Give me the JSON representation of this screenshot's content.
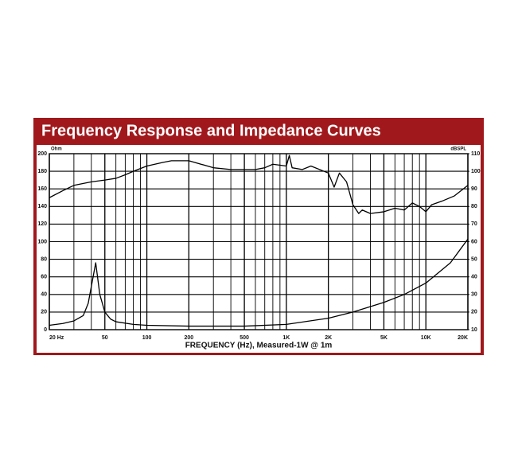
{
  "chart_data": {
    "type": "line",
    "title": "Frequency Response and Impedance Curves",
    "x_label": "FREQUENCY (Hz), Measured-1W @ 1m",
    "y_label": "Ohm",
    "y2_label": "dBSPL",
    "xscale": "log",
    "xlim": [
      20,
      20000
    ],
    "xticks": [
      {
        "value": 20,
        "label": "20 Hz"
      },
      50,
      100,
      200,
      500,
      {
        "value": 1000,
        "label": "1K"
      },
      {
        "value": 2000,
        "label": "2K"
      },
      {
        "value": 5000,
        "label": "5K"
      },
      {
        "value": 10000,
        "label": "10K"
      },
      {
        "value": 20000,
        "label": "20K"
      }
    ],
    "xgrid": [
      30,
      40,
      60,
      70,
      80,
      90,
      300,
      400,
      600,
      700,
      800,
      900,
      3000,
      4000,
      6000,
      7000,
      8000,
      9000
    ],
    "ylim": [
      0,
      200
    ],
    "yticks": [
      0,
      20,
      40,
      60,
      80,
      100,
      120,
      140,
      160,
      180,
      200
    ],
    "y2lim": [
      10,
      110
    ],
    "y2ticks": [
      10,
      20,
      30,
      40,
      50,
      60,
      70,
      80,
      90,
      100,
      110
    ],
    "grid": true,
    "header_color": "#a0181c",
    "series": [
      {
        "color": "#000000",
        "axis": "y2",
        "x": [
          20,
          25,
          30,
          40,
          50,
          60,
          70,
          80,
          100,
          130,
          150,
          200,
          300,
          400,
          500,
          600,
          700,
          800,
          1000,
          1050,
          1100,
          1300,
          1500,
          2000,
          2200,
          2400,
          2700,
          3000,
          3300,
          3500,
          4000,
          5000,
          6000,
          7000,
          8000,
          9000,
          10000,
          11000,
          13000,
          16000,
          20000
        ],
        "values": [
          85,
          89,
          92,
          94,
          95,
          96,
          98,
          100,
          103,
          105,
          106,
          106,
          102,
          101,
          101,
          101,
          102,
          104,
          103,
          109,
          102,
          101,
          103,
          99,
          91,
          99,
          94,
          81,
          76,
          78,
          76,
          77,
          79,
          78,
          82,
          80,
          77,
          81,
          83,
          86,
          92
        ]
      },
      {
        "color": "#000000",
        "axis": "y",
        "x": [
          20,
          25,
          30,
          35,
          38,
          43,
          46,
          50,
          55,
          60,
          80,
          100,
          200,
          500,
          1000,
          2000,
          3000,
          5000,
          7000,
          10000,
          15000,
          20000
        ],
        "values": [
          5,
          7,
          10,
          16,
          30,
          76,
          40,
          20,
          12,
          9,
          6,
          5,
          4,
          4,
          6,
          13,
          20,
          31,
          40,
          53,
          76,
          103
        ]
      }
    ]
  }
}
